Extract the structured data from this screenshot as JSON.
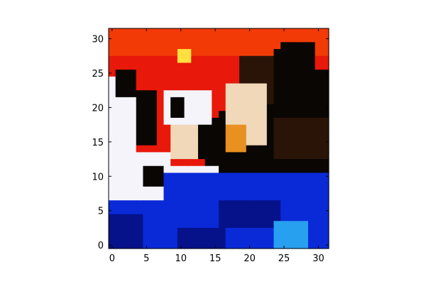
{
  "chart_data": {
    "type": "heatmap",
    "title": "",
    "xlabel": "",
    "ylabel": "",
    "xlim": [
      -0.5,
      31.5
    ],
    "ylim": [
      31.5,
      -0.5
    ],
    "xticks": [
      0,
      5,
      10,
      15,
      20,
      25,
      30
    ],
    "yticks": [
      0,
      5,
      10,
      15,
      20,
      25,
      30
    ],
    "xtick_labels": [
      "0",
      "5",
      "10",
      "15",
      "20",
      "25",
      "30"
    ],
    "ytick_labels": [
      "0",
      "5",
      "10",
      "15",
      "20",
      "25",
      "30"
    ],
    "grid": false,
    "image_size": [
      32,
      32
    ],
    "image_description": "32x32 pixelated RGB image: red-orange background upper area, dark brown/black animal figure on right, white shape with black markings on left, blue region along bottom",
    "palette": {
      "red": "#e8180a",
      "orange_red": "#f23a06",
      "dark": "#0a0604",
      "dark_brown": "#2a1408",
      "white": "#f4f4fa",
      "cream": "#f0d8b8",
      "orange": "#e89020",
      "yellow": "#ffe040",
      "blue": "#0a2ad8",
      "navy": "#06128a",
      "light_blue": "#28a0f0"
    }
  }
}
